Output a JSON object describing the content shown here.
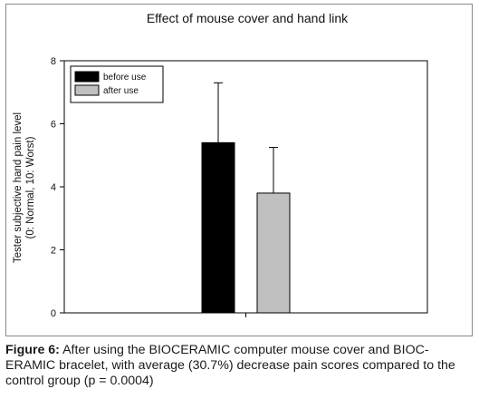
{
  "chart_data": {
    "type": "bar",
    "title": "Effect of mouse cover and hand link",
    "ylabel_lines": [
      "Tester subjective hand pain level",
      "(0: Normal, 10: Worst)"
    ],
    "xlabel": "",
    "ylim": [
      0,
      8
    ],
    "yticks": [
      0,
      2,
      4,
      6,
      8
    ],
    "grid": false,
    "legend_position": "top-left",
    "series": [
      {
        "name": "before use",
        "value": 5.4,
        "error": 1.9,
        "color": "#000000"
      },
      {
        "name": "after use",
        "value": 3.8,
        "error": 1.45,
        "color": "#c0c0c0"
      }
    ]
  },
  "caption": {
    "label": "Figure 6:",
    "text": " After using the BIOCERAMIC computer mouse cover and BIOC-ERAMIC bracelet, with average (30.7%) decrease pain scores compared to the control group (p = 0.0004)"
  }
}
